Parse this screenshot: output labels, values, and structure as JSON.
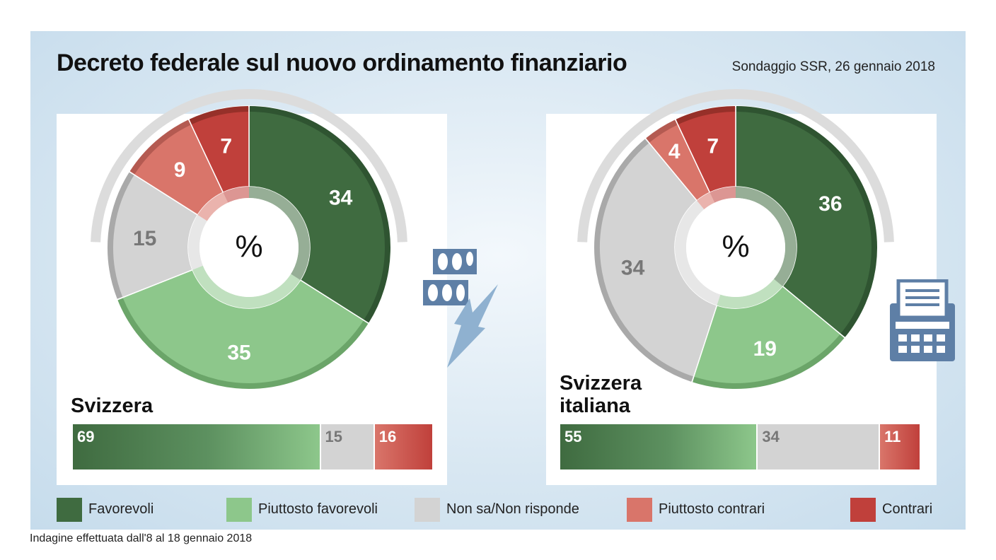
{
  "header": {
    "title": "Decreto federale sul nuovo ordinamento finanziario",
    "source": "Sondaggio SSR, 26 gennaio 2018"
  },
  "footnote": "Indagine effettuata dall'8 al 18 gennaio 2018",
  "center_symbol": "%",
  "colors": {
    "favorevoli": "#3f6b40",
    "piuttosto_favorevoli": "#8dc78b",
    "non_sa": "#d3d3d3",
    "piuttosto_contrari": "#d9756a",
    "contrari": "#c0403b",
    "panel_background": "#d8e7f2",
    "icon": "#5e7fa6"
  },
  "legend": {
    "items": [
      {
        "key": "favorevoli",
        "label": "Favorevoli"
      },
      {
        "key": "piuttosto_favorevoli",
        "label": "Piuttosto favorevoli"
      },
      {
        "key": "non_sa",
        "label": "Non sa/Non risponde"
      },
      {
        "key": "piuttosto_contrari",
        "label": "Piuttosto contrari"
      },
      {
        "key": "contrari",
        "label": "Contrari"
      }
    ]
  },
  "icons": [
    "ballot-boxes-icon",
    "lightning-bolt-icon",
    "cash-register-icon"
  ],
  "chart_data": [
    {
      "type": "pie",
      "region": "Svizzera",
      "unit": "%",
      "categories": [
        "Favorevoli",
        "Piuttosto favorevoli",
        "Non sa/Non risponde",
        "Piuttosto contrari",
        "Contrari"
      ],
      "values": [
        34,
        35,
        15,
        9,
        7
      ]
    },
    {
      "type": "pie",
      "region": "Svizzera italiana",
      "unit": "%",
      "categories": [
        "Favorevoli",
        "Piuttosto favorevoli",
        "Non sa/Non risponde",
        "Piuttosto contrari",
        "Contrari"
      ],
      "values": [
        36,
        19,
        34,
        4,
        7
      ]
    },
    {
      "type": "bar",
      "orientation": "horizontal-stacked",
      "region": "Svizzera",
      "categories": [
        "Favorevoli",
        "Non sa/Non risponde",
        "Contrari"
      ],
      "values": [
        69,
        15,
        16
      ]
    },
    {
      "type": "bar",
      "orientation": "horizontal-stacked",
      "region": "Svizzera italiana",
      "categories": [
        "Favorevoli",
        "Non sa/Non risponde",
        "Contrari"
      ],
      "values": [
        55,
        34,
        11
      ]
    }
  ],
  "regions": [
    {
      "name_line1": "Svizzera",
      "name_line2": ""
    },
    {
      "name_line1": "Svizzera",
      "name_line2": "italiana"
    }
  ]
}
